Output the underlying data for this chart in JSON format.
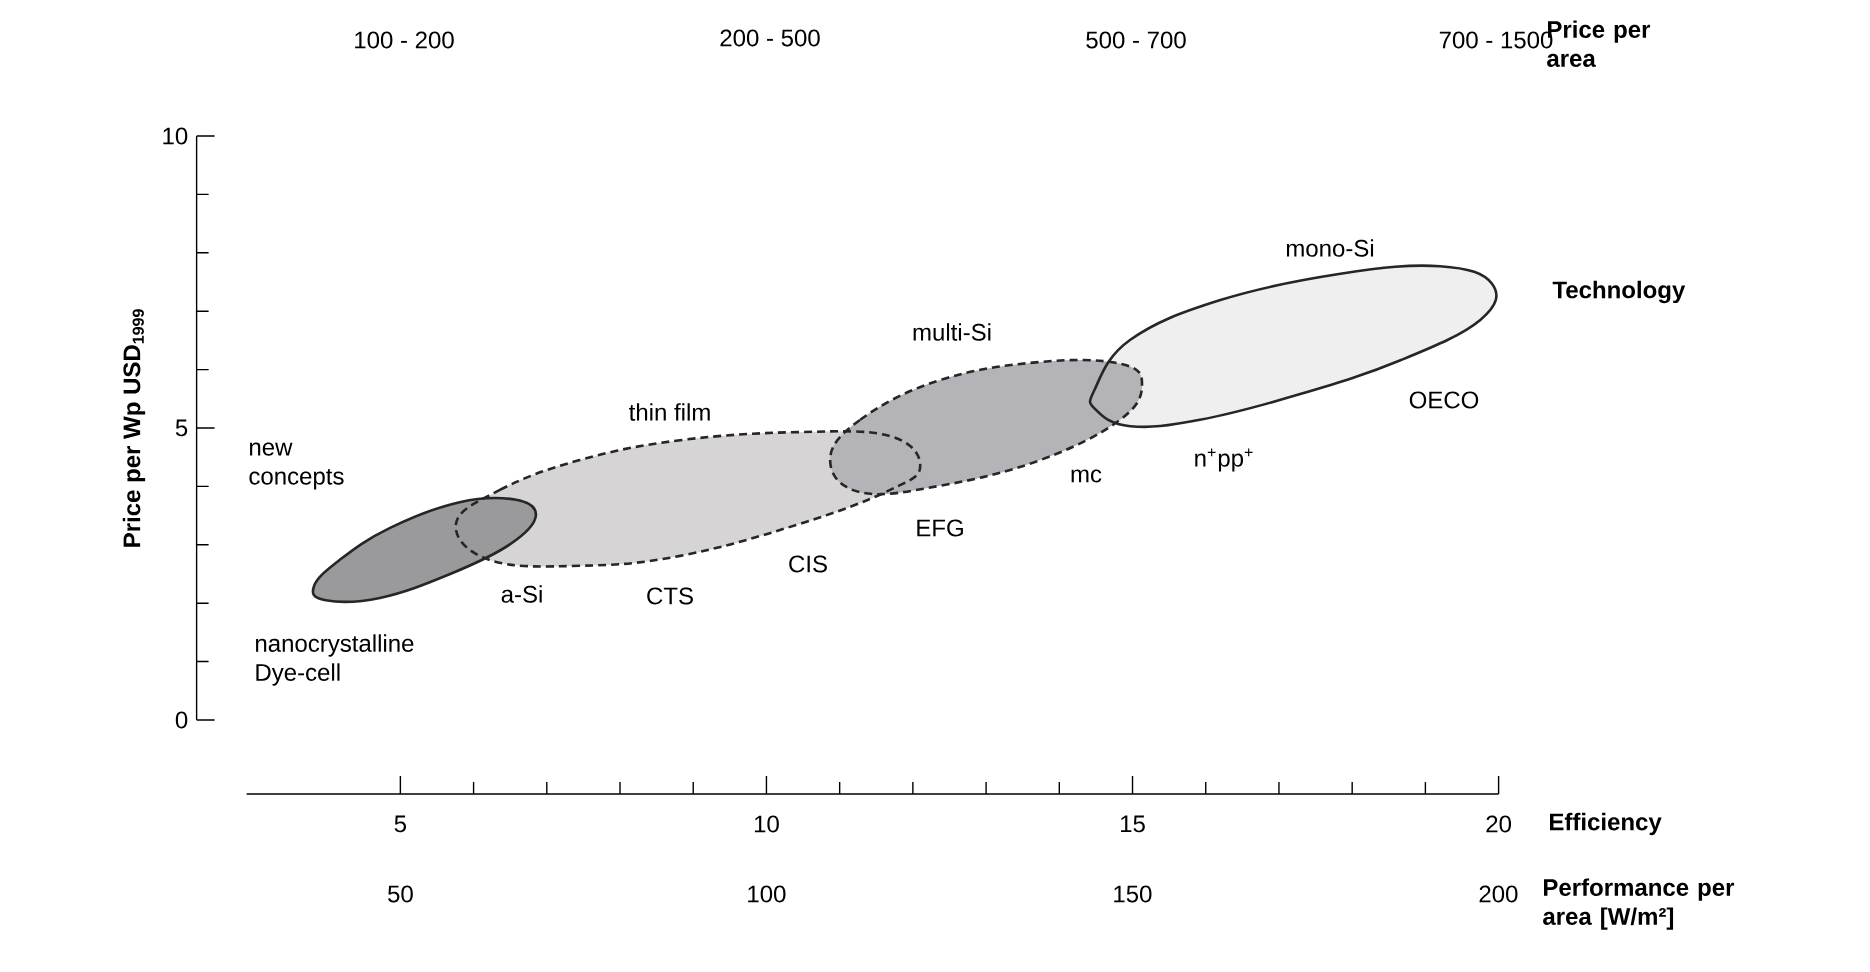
{
  "chart_data": {
    "type": "area",
    "xlabel": "Efficiency",
    "ylabel": "Price per Wp USD$_{1999}$",
    "x2label": "Performance per area [W/m²]",
    "xlim": [
      2.9,
      20
    ],
    "xticks": [
      5,
      10,
      15,
      20
    ],
    "x2lim": [
      50,
      200
    ],
    "x2ticks": [
      50,
      100,
      150,
      200
    ],
    "ylim": [
      0,
      10
    ],
    "yticks": [
      0,
      5,
      10
    ],
    "series": [
      {
        "color": "#d6d4d5",
        "line_style": "dashed",
        "x": [
          5.76,
          6.36,
          7.45,
          8.82,
          10.46,
          11.69,
          12.1,
          11.69,
          10.46,
          8.82,
          7.45,
          6.22
        ],
        "values": [
          3.36,
          3.94,
          4.45,
          4.79,
          4.93,
          4.86,
          4.35,
          3.94,
          3.36,
          2.81,
          2.64,
          2.74
        ]
      },
      {
        "color": "#9a9a9c",
        "line_style": "solid",
        "x": [
          3.82,
          4.17,
          4.86,
          5.81,
          6.58,
          6.85,
          6.5,
          5.68,
          4.72,
          3.98
        ],
        "values": [
          2.29,
          2.74,
          3.29,
          3.73,
          3.77,
          3.49,
          3.01,
          2.5,
          2.09,
          2.05
        ]
      },
      {
        "color": "#efefef",
        "line_style": "solid",
        "x": [
          14.48,
          14.97,
          16.2,
          17.84,
          19.2,
          19.91,
          19.75,
          18.66,
          17.29,
          15.92,
          14.97,
          14.5
        ],
        "values": [
          5.65,
          6.51,
          7.19,
          7.64,
          7.77,
          7.47,
          6.85,
          6.16,
          5.58,
          5.14,
          5.03,
          5.31
        ]
      },
      {
        "color": "#b4b4b8",
        "line_style": "dashed",
        "x": [
          10.87,
          11.28,
          12.37,
          13.74,
          14.83,
          15.13,
          14.83,
          13.74,
          12.37,
          11.28
        ],
        "values": [
          4.45,
          5.14,
          5.82,
          6.13,
          6.1,
          5.75,
          5.14,
          4.45,
          4.01,
          3.9
        ]
      }
    ],
    "annotations": [
      "100 - 200",
      "200 - 500",
      "500 - 700",
      "700 - 1500",
      "Price per area",
      "Technology",
      "mono-Si",
      "OECO",
      "n$^{+}$pp$^{+}$",
      "multi-Si",
      "mc",
      "EFG",
      "thin film",
      "CIS",
      "CTS",
      "a-Si",
      "new concepts",
      "nanocrystalline Dye-cell"
    ]
  }
}
